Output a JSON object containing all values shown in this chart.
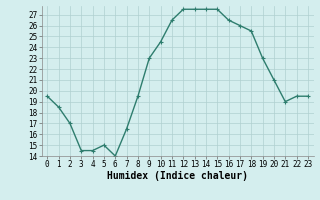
{
  "x": [
    0,
    1,
    2,
    3,
    4,
    5,
    6,
    7,
    8,
    9,
    10,
    11,
    12,
    13,
    14,
    15,
    16,
    17,
    18,
    19,
    20,
    21,
    22,
    23
  ],
  "y": [
    19.5,
    18.5,
    17.0,
    14.5,
    14.5,
    15.0,
    14.0,
    16.5,
    19.5,
    23.0,
    24.5,
    26.5,
    27.5,
    27.5,
    27.5,
    27.5,
    26.5,
    26.0,
    25.5,
    23.0,
    21.0,
    19.0,
    19.5,
    19.5
  ],
  "line_color": "#2e7d6e",
  "marker": "+",
  "bg_color": "#d4eeee",
  "grid_color": "#b0d0d0",
  "xlabel": "Humidex (Indice chaleur)",
  "ylim": [
    14,
    27.8
  ],
  "xlim": [
    -0.5,
    23.5
  ],
  "yticks": [
    14,
    15,
    16,
    17,
    18,
    19,
    20,
    21,
    22,
    23,
    24,
    25,
    26,
    27
  ],
  "xticks": [
    0,
    1,
    2,
    3,
    4,
    5,
    6,
    7,
    8,
    9,
    10,
    11,
    12,
    13,
    14,
    15,
    16,
    17,
    18,
    19,
    20,
    21,
    22,
    23
  ],
  "tick_fontsize": 5.5,
  "label_fontsize": 7,
  "line_width": 1.0,
  "marker_size": 3.5,
  "marker_ew": 0.8
}
